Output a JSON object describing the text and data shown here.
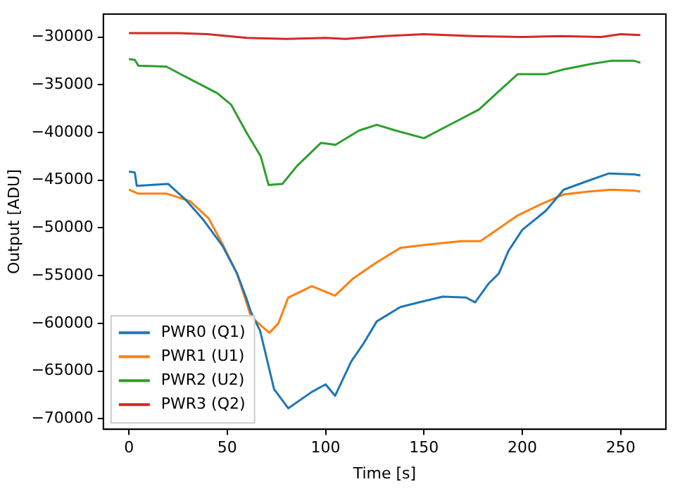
{
  "chart_data": {
    "type": "line",
    "xlabel": "Time [s]",
    "ylabel": "Output [ADU]",
    "xlim": [
      -13,
      273
    ],
    "xticks": [
      0,
      50,
      100,
      150,
      200,
      250
    ],
    "ylim": [
      -71100,
      -27600
    ],
    "yticks": [
      -70000,
      -65000,
      -60000,
      -55000,
      -50000,
      -45000,
      -40000,
      -35000,
      -30000
    ],
    "grid": false,
    "legend": "bottom left",
    "marker": "none",
    "line_style": "solid",
    "series": [
      {
        "name": "PWR0 (Q1)",
        "color": "#1f77b4",
        "x": [
          0,
          3,
          4,
          20,
          28.6,
          38,
          47.6,
          55,
          59.6,
          62,
          66.7,
          73.8,
          81,
          92.9,
          100,
          104.8,
          113,
          119,
          126,
          138,
          147.6,
          159.5,
          171.4,
          176,
          183,
          188,
          193,
          200,
          212,
          221,
          233,
          244,
          257,
          260
        ],
        "values": [
          -44100,
          -44200,
          -45600,
          -45400,
          -47000,
          -49200,
          -51900,
          -54800,
          -57300,
          -58800,
          -60800,
          -66900,
          -68900,
          -67200,
          -66400,
          -67600,
          -64000,
          -62200,
          -59800,
          -58300,
          -57800,
          -57200,
          -57300,
          -57800,
          -55800,
          -54800,
          -52400,
          -50200,
          -48200,
          -46000,
          -45100,
          -44300,
          -44400,
          -44500
        ]
      },
      {
        "name": "PWR1 (U1)",
        "color": "#ff7f0e",
        "x": [
          0,
          4.5,
          19,
          31,
          40.5,
          47.6,
          55,
          59.6,
          62,
          71.4,
          76,
          81,
          93,
          104.8,
          114,
          126,
          138,
          150,
          169,
          178.6,
          185.7,
          197.6,
          209.6,
          221,
          233,
          245,
          257,
          260
        ],
        "values": [
          -46000,
          -46400,
          -46400,
          -47200,
          -49000,
          -51700,
          -54800,
          -57700,
          -59300,
          -61000,
          -60000,
          -57300,
          -56100,
          -57100,
          -55300,
          -53600,
          -52100,
          -51800,
          -51400,
          -51400,
          -50400,
          -48700,
          -47500,
          -46500,
          -46200,
          -46000,
          -46100,
          -46200
        ]
      },
      {
        "name": "PWR2 (U2)",
        "color": "#2ca02c",
        "x": [
          0,
          3,
          4.8,
          19,
          31,
          45,
          52,
          60,
          67,
          71,
          78,
          85.5,
          97.6,
          105,
          117,
          126,
          135.6,
          150,
          164,
          178,
          188,
          197.6,
          212,
          221,
          235.5,
          245,
          257,
          260
        ],
        "values": [
          -32300,
          -32400,
          -33000,
          -33100,
          -34400,
          -35900,
          -37100,
          -40100,
          -42500,
          -45500,
          -45400,
          -43500,
          -41100,
          -41300,
          -39800,
          -39200,
          -39800,
          -40600,
          -39100,
          -37600,
          -35700,
          -33900,
          -33900,
          -33400,
          -32800,
          -32500,
          -32500,
          -32700
        ]
      },
      {
        "name": "PWR3 (Q2)",
        "color": "#d62728",
        "x": [
          0,
          25,
          40,
          60,
          80,
          100,
          110,
          130,
          150,
          175,
          200,
          220,
          240,
          250,
          260
        ],
        "values": [
          -29600,
          -29600,
          -29700,
          -30100,
          -30200,
          -30100,
          -30200,
          -29900,
          -29700,
          -29900,
          -30000,
          -29900,
          -30000,
          -29700,
          -29800
        ]
      }
    ]
  }
}
